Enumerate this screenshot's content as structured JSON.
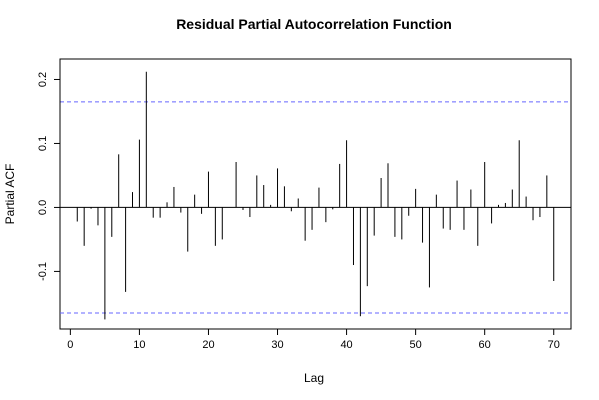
{
  "chart_data": {
    "type": "bar",
    "title": "Residual Partial Autocorrelation Function",
    "xlabel": "Lag",
    "ylabel": "Partial ACF",
    "xlim": [
      -1.5,
      72.5
    ],
    "ylim": [
      -0.19,
      0.232
    ],
    "x_ticks": [
      0,
      10,
      20,
      30,
      40,
      50,
      60,
      70
    ],
    "y_ticks": [
      -0.1,
      0.0,
      0.1,
      0.2
    ],
    "confidence_bounds": [
      0.165,
      -0.165
    ],
    "bound_color": "#6666ff",
    "bar_color": "#000000",
    "grid": false,
    "legend": "none",
    "lags": [
      1,
      2,
      3,
      4,
      5,
      6,
      7,
      8,
      9,
      10,
      11,
      12,
      13,
      14,
      15,
      16,
      17,
      18,
      19,
      20,
      21,
      22,
      23,
      24,
      25,
      26,
      27,
      28,
      29,
      30,
      31,
      32,
      33,
      34,
      35,
      36,
      37,
      38,
      39,
      40,
      41,
      42,
      43,
      44,
      45,
      46,
      47,
      48,
      49,
      50,
      51,
      52,
      53,
      54,
      55,
      56,
      57,
      58,
      59,
      60,
      61,
      62,
      63,
      64,
      65,
      66,
      67,
      68,
      69,
      70
    ],
    "values": [
      -0.022,
      -0.06,
      -0.002,
      -0.028,
      -0.175,
      -0.046,
      0.083,
      -0.132,
      0.024,
      0.106,
      0.212,
      -0.016,
      -0.016,
      0.008,
      0.032,
      -0.008,
      -0.069,
      0.02,
      -0.01,
      0.056,
      -0.06,
      -0.05,
      0.0,
      0.071,
      -0.004,
      -0.015,
      0.05,
      0.035,
      0.004,
      0.061,
      0.033,
      -0.006,
      0.014,
      -0.052,
      -0.035,
      0.031,
      -0.023,
      -0.003,
      0.068,
      0.105,
      -0.09,
      -0.17,
      -0.123,
      -0.044,
      0.046,
      0.069,
      -0.046,
      -0.05,
      -0.013,
      0.029,
      -0.055,
      -0.125,
      0.02,
      -0.033,
      -0.035,
      0.042,
      -0.035,
      0.028,
      -0.06,
      0.071,
      -0.025,
      0.004,
      0.007,
      0.028,
      0.105,
      0.017,
      -0.02,
      -0.015,
      0.05,
      -0.115
    ]
  }
}
